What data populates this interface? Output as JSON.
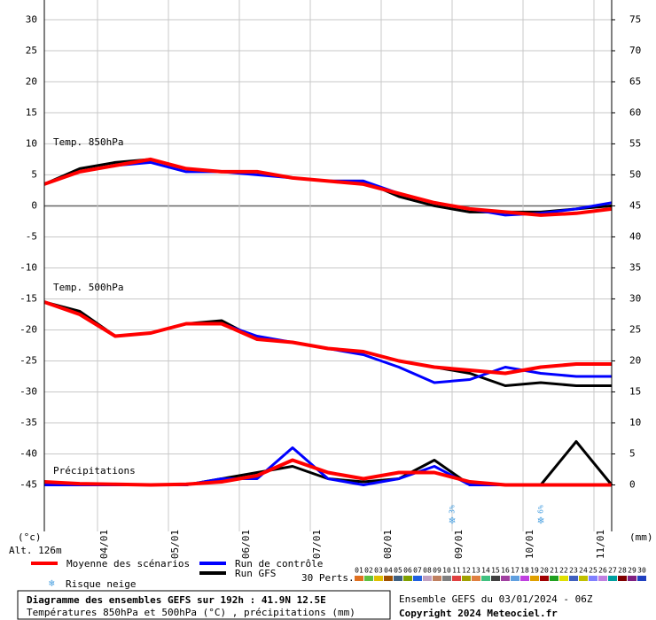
{
  "chart_data": {
    "type": "line",
    "title": "Diagramme des ensembles GEFS sur 192h : 41.9N 12.5E",
    "subtitle": "Températures 850hPa et 500hPa (°C) , précipitations (mm)",
    "run_info": "Ensemble GEFS du 03/01/2024 - 06Z",
    "copyright": "Copyright 2024 Meteociel.fr",
    "y_label": "(°c)",
    "altitude": "Alt. 126m",
    "y2_label": "(mm)",
    "panel_labels": [
      "Temp. 850hPa",
      "Temp. 500hPa",
      "Précipitations"
    ],
    "x": [
      0,
      12,
      24,
      36,
      48,
      60,
      72,
      84,
      96,
      108,
      120,
      132,
      144,
      156,
      168,
      180,
      192
    ],
    "xlim": [
      0,
      192
    ],
    "xticks": [
      {
        "value": 18,
        "label": "04/01"
      },
      {
        "value": 42,
        "label": "05/01"
      },
      {
        "value": 66,
        "label": "06/01"
      },
      {
        "value": 90,
        "label": "07/01"
      },
      {
        "value": 114,
        "label": "08/01"
      },
      {
        "value": 138,
        "label": "09/01"
      },
      {
        "value": 162,
        "label": "10/01"
      },
      {
        "value": 186,
        "label": "11/01"
      }
    ],
    "ylim": [
      -52.5,
      33.2
    ],
    "yticks": [
      30,
      25,
      20,
      15,
      10,
      5,
      0,
      -5,
      -10,
      -15,
      -20,
      -25,
      -30,
      -35,
      -40,
      -45
    ],
    "y2lim": [
      -7.5,
      78.2
    ],
    "y2ticks": [
      75,
      70,
      65,
      60,
      55,
      50,
      45,
      40,
      35,
      30,
      25,
      20,
      15,
      10,
      5,
      0
    ],
    "grid": true,
    "series": [
      {
        "name": "Run GFS",
        "color": "#000000",
        "values_850": [
          3.5,
          6,
          7,
          7.5,
          6,
          5.5,
          5.5,
          4.5,
          4,
          4,
          1.5,
          0,
          -1,
          -1,
          -1,
          -0.5,
          0
        ],
        "values_500": [
          -15.5,
          -17,
          -21,
          -20.5,
          -19,
          -18.5,
          -21.5,
          -22,
          -23,
          -23.5,
          -25,
          -26,
          -27,
          -29,
          -28.5,
          -29,
          -29
        ],
        "values_precip": [
          0,
          0,
          0,
          0,
          0,
          1,
          2,
          3,
          1,
          0.5,
          1,
          4,
          0,
          0,
          0,
          7,
          0
        ]
      },
      {
        "name": "Run de contrôle",
        "color": "#0000ff",
        "values_850": [
          3.5,
          5.5,
          6.5,
          7,
          5.5,
          5.5,
          5,
          4.5,
          4,
          4,
          2,
          0.5,
          -0.5,
          -1.5,
          -1.2,
          -0.5,
          0.5
        ],
        "values_500": [
          -15.5,
          -17.5,
          -21,
          -20.5,
          -19,
          -19,
          -21,
          -22,
          -23,
          -24,
          -26,
          -28.5,
          -28,
          -26,
          -27,
          -27.5,
          -27.5
        ],
        "values_precip": [
          0,
          0,
          0,
          0,
          0,
          1,
          1,
          6,
          1,
          0,
          1,
          3,
          0,
          0,
          0,
          0,
          0
        ]
      },
      {
        "name": "Moyenne des scénarios",
        "color": "#ff0000",
        "values_850": [
          3.5,
          5.5,
          6.5,
          7.5,
          6,
          5.5,
          5.5,
          4.5,
          4,
          3.5,
          2,
          0.5,
          -0.5,
          -1,
          -1.5,
          -1.2,
          -0.5
        ],
        "values_500": [
          -15.5,
          -17.5,
          -21,
          -20.5,
          -19,
          -19,
          -21.5,
          -22,
          -23,
          -23.5,
          -25,
          -26,
          -26.5,
          -27,
          -26,
          -25.5,
          -25.5
        ],
        "values_precip": [
          0.5,
          0.2,
          0.1,
          0,
          0.1,
          0.5,
          1.5,
          4,
          2,
          1,
          2,
          2,
          0.5,
          0,
          0,
          0,
          0
        ]
      }
    ],
    "snow_risk": {
      "name": "Risque neige",
      "x": [
        138,
        168
      ],
      "values": [
        3,
        6
      ],
      "value_labels": [
        "3%",
        "6%"
      ]
    },
    "perturbations": {
      "label": "30 Perts.",
      "names": [
        "01",
        "02",
        "03",
        "04",
        "05",
        "06",
        "07",
        "08",
        "09",
        "10",
        "11",
        "12",
        "13",
        "14",
        "15",
        "16",
        "17",
        "18",
        "19",
        "20",
        "21",
        "22",
        "23",
        "24",
        "25",
        "26",
        "27",
        "28",
        "29",
        "30"
      ],
      "colors": [
        "#e07020",
        "#60c040",
        "#e0c000",
        "#a05000",
        "#406080",
        "#80a000",
        "#2060e0",
        "#c0a0c0",
        "#c08060",
        "#808080",
        "#e04040",
        "#a0a000",
        "#e08040",
        "#40c080",
        "#404040",
        "#a040a0",
        "#60a0e0",
        "#c040e0",
        "#e0a000",
        "#a00000",
        "#20a020",
        "#e0e000",
        "#4060c0",
        "#c0c000",
        "#8080ff",
        "#c080e0",
        "#00a0a0",
        "#800000",
        "#802080",
        "#2040c0"
      ]
    }
  }
}
